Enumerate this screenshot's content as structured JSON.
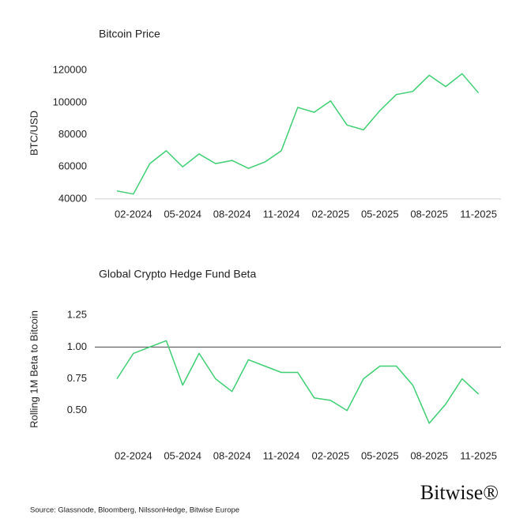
{
  "chart_data": [
    {
      "type": "line",
      "title": "Bitcoin Price",
      "y_label": "BTC/USD",
      "x": [
        "01-2024",
        "02-2024",
        "03-2024",
        "04-2024",
        "05-2024",
        "06-2024",
        "07-2024",
        "08-2024",
        "09-2024",
        "10-2024",
        "11-2024",
        "12-2024",
        "01-2025",
        "02-2025",
        "03-2025",
        "04-2025",
        "05-2025",
        "06-2025",
        "07-2025",
        "08-2025",
        "09-2025",
        "10-2025",
        "11-2025"
      ],
      "series": [
        {
          "name": "Bitcoin Price",
          "color": "#3ecf72",
          "values": [
            45000,
            43000,
            62000,
            70000,
            60000,
            68000,
            62000,
            64000,
            59000,
            63000,
            70000,
            97000,
            94000,
            101000,
            86000,
            83000,
            95000,
            105000,
            107000,
            117000,
            110000,
            118000,
            106000
          ]
        }
      ],
      "ylim": [
        35000,
        127000
      ],
      "yticks": [
        40000,
        60000,
        80000,
        100000,
        120000
      ],
      "xticks": [
        "02-2024",
        "05-2024",
        "08-2024",
        "11-2024",
        "02-2025",
        "05-2025",
        "08-2025",
        "11-2025"
      ],
      "reference_line": {
        "value": 40000,
        "color": "#d0d0d0"
      }
    },
    {
      "type": "line",
      "title": "Global Crypto Hedge Fund Beta",
      "y_label": "Rolling 1M Beta to Bitcoin",
      "x": [
        "01-2024",
        "02-2024",
        "03-2024",
        "04-2024",
        "05-2024",
        "06-2024",
        "07-2024",
        "08-2024",
        "09-2024",
        "10-2024",
        "11-2024",
        "12-2024",
        "01-2025",
        "02-2025",
        "03-2025",
        "04-2025",
        "05-2025",
        "06-2025",
        "07-2025",
        "08-2025",
        "09-2025",
        "10-2025",
        "11-2025"
      ],
      "series": [
        {
          "name": "Global Crypto Hedge Fund Beta",
          "color": "#3ecf72",
          "values": [
            0.75,
            0.95,
            1.0,
            1.05,
            0.7,
            0.95,
            0.75,
            0.65,
            0.9,
            0.85,
            0.8,
            0.8,
            0.6,
            0.58,
            0.5,
            0.75,
            0.85,
            0.85,
            0.7,
            0.4,
            0.55,
            0.75,
            0.63
          ]
        }
      ],
      "ylim": [
        0.25,
        1.4
      ],
      "yticks": [
        {
          "value": 0.5,
          "label": "0.50"
        },
        0.75,
        {
          "value": 1.0,
          "label": "1.00"
        },
        1.25
      ],
      "xticks": [
        "02-2024",
        "05-2024",
        "08-2024",
        "11-2024",
        "02-2025",
        "05-2025",
        "08-2025",
        "11-2025"
      ],
      "reference_line": {
        "value": 1.0,
        "color": "#444444"
      }
    }
  ],
  "footer": {
    "source": "Source: Glassnode, Bloomberg, NilssonHedge, Bitwise Europe",
    "logo": "Bitwise®"
  }
}
